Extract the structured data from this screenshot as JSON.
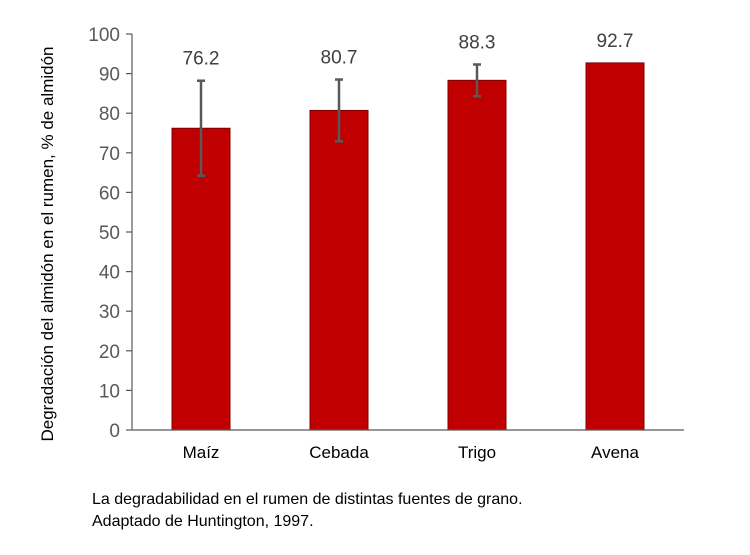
{
  "chart_data": {
    "type": "bar",
    "categories": [
      "Maíz",
      "Cebada",
      "Trigo",
      "Avena"
    ],
    "values": [
      76.2,
      80.7,
      88.3,
      92.7
    ],
    "data_labels": [
      "76.2",
      "80.7",
      "88.3",
      "92.7"
    ],
    "error_bars": [
      {
        "low": 64.2,
        "high": 88.2
      },
      {
        "low": 72.9,
        "high": 88.5
      },
      {
        "low": 84.3,
        "high": 92.3
      },
      null
    ],
    "ylabel": "Degradación del almidón en el rumen, % de almidón",
    "xlabel": "",
    "ylim": [
      0,
      100
    ],
    "yticks": [
      0,
      10,
      20,
      30,
      40,
      50,
      60,
      70,
      80,
      90,
      100
    ],
    "grid": false,
    "legend": "none",
    "bar_color": "#c00000",
    "bar_edge_color": "#7f0000",
    "error_bar_color": "#595959"
  },
  "caption": {
    "line1": "La degradabilidad en el rumen de distintas fuentes de grano.",
    "line2": "Adaptado de Huntington, 1997."
  }
}
